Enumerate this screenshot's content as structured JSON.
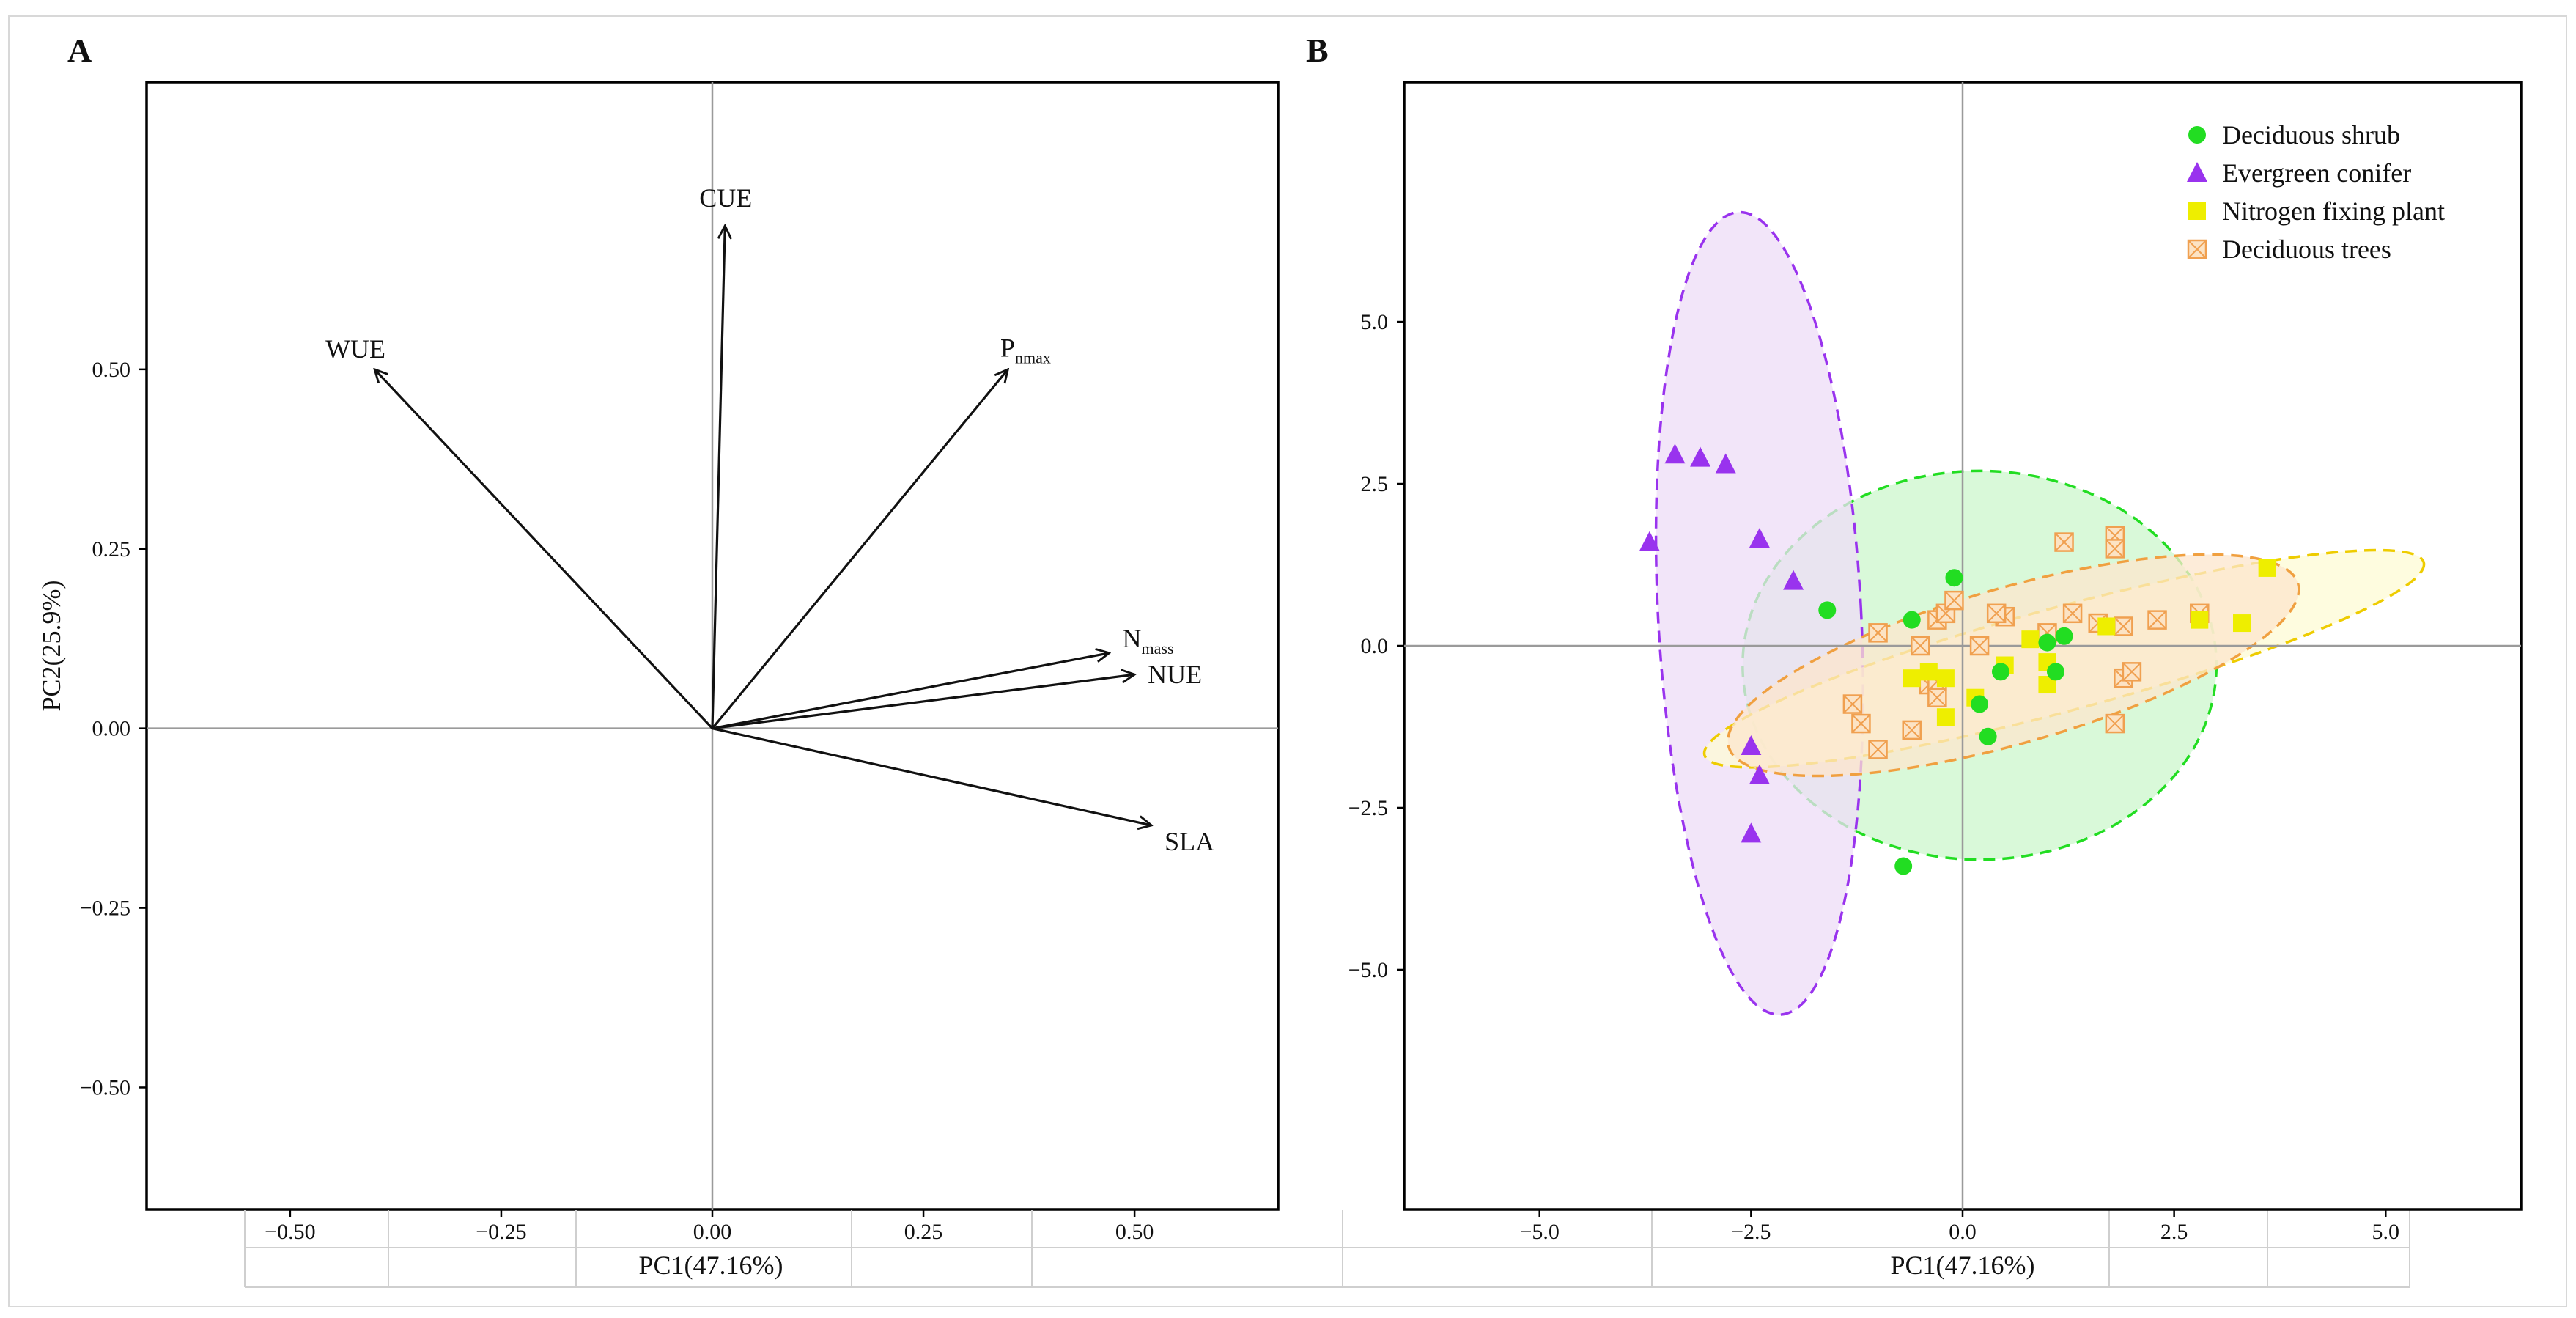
{
  "panels": {
    "a": {
      "letter": "A"
    },
    "b": {
      "letter": "B"
    }
  },
  "chart_data": [
    {
      "type": "biplot",
      "panel": "A",
      "xlabel": "PC1(47.16%)",
      "ylabel": "PC2(25.9%)",
      "xlim": [
        -0.67,
        0.67
      ],
      "ylim": [
        -0.67,
        0.9
      ],
      "xticks": [
        -0.5,
        -0.25,
        0.0,
        0.25,
        0.5
      ],
      "xtick_labels": [
        "−0.50",
        "−0.25",
        "0.00",
        "0.25",
        "0.50"
      ],
      "yticks": [
        -0.5,
        -0.25,
        0.0,
        0.25,
        0.5
      ],
      "ytick_labels": [
        "−0.50",
        "−0.25",
        "0.00",
        "0.25",
        "0.50"
      ],
      "vectors": [
        {
          "label": "CUE",
          "x": 0.015,
          "y": 0.7
        },
        {
          "label": "WUE",
          "x": -0.4,
          "y": 0.5
        },
        {
          "label": "P",
          "sub": "nmax",
          "x": 0.35,
          "y": 0.5
        },
        {
          "label": "N",
          "sub": "mass",
          "x": 0.47,
          "y": 0.105
        },
        {
          "label": "NUE",
          "x": 0.5,
          "y": 0.075
        },
        {
          "label": "SLA",
          "x": 0.52,
          "y": -0.135
        }
      ]
    },
    {
      "type": "scatter",
      "panel": "B",
      "xlabel": "PC1(47.16%)",
      "ylabel": "",
      "xlim": [
        -6.6,
        6.6
      ],
      "ylim": [
        -8.7,
        8.7
      ],
      "xticks": [
        -5,
        -2.5,
        0,
        2.5,
        5
      ],
      "xtick_labels": [
        "−5.0",
        "−2.5",
        "0.0",
        "2.5",
        "5.0"
      ],
      "yticks": [
        -5,
        -2.5,
        0,
        2.5,
        5
      ],
      "ytick_labels": [
        "−5.0",
        "−2.5",
        "0.0",
        "2.5",
        "5.0"
      ],
      "legend_position": "top-right",
      "series": [
        {
          "name": "Deciduous shrub",
          "marker": "circle",
          "color": "#22dd22",
          "ellipse": {
            "cx": 0.2,
            "cy": -0.3,
            "rx": 2.8,
            "ry": 3.0,
            "angle": 0,
            "fill": "#ccf7cc",
            "stroke": "#22dd22"
          },
          "points": [
            [
              -1.6,
              0.55
            ],
            [
              -0.6,
              0.4
            ],
            [
              -0.1,
              1.05
            ],
            [
              0.45,
              -0.4
            ],
            [
              1.2,
              0.15
            ],
            [
              1.0,
              0.05
            ],
            [
              1.1,
              -0.4
            ],
            [
              0.2,
              -0.9
            ],
            [
              0.3,
              -1.4
            ],
            [
              -0.7,
              -3.4
            ]
          ]
        },
        {
          "name": "Evergreen conifer",
          "marker": "triangle",
          "color": "#9933ee",
          "ellipse": {
            "cx": -2.4,
            "cy": 0.5,
            "rx": 1.2,
            "ry": 6.2,
            "angle": -3,
            "fill": "#eddcf7",
            "stroke": "#9933ee"
          },
          "points": [
            [
              -3.4,
              2.95
            ],
            [
              -3.1,
              2.9
            ],
            [
              -2.8,
              2.8
            ],
            [
              -3.7,
              1.6
            ],
            [
              -2.4,
              1.65
            ],
            [
              -2.0,
              1.0
            ],
            [
              -2.5,
              -1.55
            ],
            [
              -2.4,
              -2.0
            ],
            [
              -2.5,
              -2.9
            ]
          ]
        },
        {
          "name": "Nitrogen fixing plant",
          "marker": "square",
          "color": "#eeee00",
          "ellipse": {
            "cx": 1.2,
            "cy": -0.2,
            "rx": 4.4,
            "ry": 0.8,
            "angle": -15,
            "fill": "#fdfbd4",
            "stroke": "#eecc00"
          },
          "points": [
            [
              3.6,
              1.2
            ],
            [
              3.3,
              0.35
            ],
            [
              2.8,
              0.4
            ],
            [
              1.7,
              0.3
            ],
            [
              0.5,
              -0.3
            ],
            [
              1.0,
              -0.25
            ],
            [
              -0.6,
              -0.5
            ],
            [
              -0.2,
              -0.5
            ],
            [
              0.15,
              -0.8
            ],
            [
              -0.2,
              -1.1
            ],
            [
              1.0,
              -0.6
            ],
            [
              0.8,
              0.1
            ],
            [
              -0.4,
              -0.4
            ]
          ]
        },
        {
          "name": "Deciduous trees",
          "marker": "crossed-square",
          "color": "#f0a050",
          "ellipse": {
            "cx": 0.6,
            "cy": -0.3,
            "rx": 3.5,
            "ry": 1.2,
            "angle": -16,
            "fill": "#fce6cc",
            "stroke": "#f0a040"
          },
          "points": [
            [
              -1.0,
              0.2
            ],
            [
              -1.3,
              -0.9
            ],
            [
              -1.2,
              -1.2
            ],
            [
              -1.0,
              -1.6
            ],
            [
              -0.6,
              -1.3
            ],
            [
              -0.4,
              -0.6
            ],
            [
              -0.3,
              -0.55
            ],
            [
              -0.3,
              -0.8
            ],
            [
              -0.5,
              0.0
            ],
            [
              -0.3,
              0.4
            ],
            [
              -0.2,
              0.5
            ],
            [
              -0.1,
              0.7
            ],
            [
              0.2,
              0.0
            ],
            [
              0.5,
              0.45
            ],
            [
              0.4,
              0.5
            ],
            [
              1.0,
              0.2
            ],
            [
              1.3,
              0.5
            ],
            [
              1.2,
              1.6
            ],
            [
              1.6,
              0.35
            ],
            [
              1.8,
              1.7
            ],
            [
              1.8,
              1.5
            ],
            [
              1.9,
              0.3
            ],
            [
              2.3,
              0.4
            ],
            [
              1.9,
              -0.5
            ],
            [
              2.0,
              -0.4
            ],
            [
              1.8,
              -1.2
            ],
            [
              2.8,
              0.5
            ]
          ]
        }
      ]
    }
  ]
}
